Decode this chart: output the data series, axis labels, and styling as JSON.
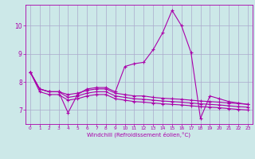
{
  "xlabel": "Windchill (Refroidissement éolien,°C)",
  "background_color": "#cce8e8",
  "line_color": "#aa00aa",
  "grid_color": "#aaaacc",
  "xmin": -0.5,
  "xmax": 23.5,
  "ymin": 6.5,
  "ymax": 10.75,
  "yticks": [
    7,
    8,
    9,
    10
  ],
  "xticks": [
    0,
    1,
    2,
    3,
    4,
    5,
    6,
    7,
    8,
    9,
    10,
    11,
    12,
    13,
    14,
    15,
    16,
    17,
    18,
    19,
    20,
    21,
    22,
    23
  ],
  "series1_x": [
    0,
    1,
    2,
    3,
    4,
    5,
    6,
    7,
    8,
    9,
    10,
    11,
    12,
    13,
    14,
    15,
    16,
    17,
    18,
    19,
    20,
    21,
    22,
    23
  ],
  "series1_y": [
    8.35,
    7.75,
    7.65,
    7.65,
    6.9,
    7.55,
    7.75,
    7.8,
    7.8,
    7.65,
    8.55,
    8.65,
    8.7,
    9.15,
    9.75,
    10.55,
    10.0,
    9.05,
    6.7,
    7.5,
    7.4,
    7.3,
    7.25,
    7.2
  ],
  "series2_x": [
    0,
    1,
    2,
    3,
    4,
    5,
    6,
    7,
    8,
    9,
    10,
    11,
    12,
    13,
    14,
    15,
    16,
    17,
    18,
    19,
    20,
    21,
    22,
    23
  ],
  "series2_y": [
    8.35,
    7.75,
    7.65,
    7.65,
    7.55,
    7.6,
    7.7,
    7.75,
    7.75,
    7.6,
    7.55,
    7.5,
    7.5,
    7.45,
    7.42,
    7.4,
    7.38,
    7.35,
    7.32,
    7.3,
    7.28,
    7.25,
    7.23,
    7.2
  ],
  "series3_x": [
    0,
    1,
    2,
    3,
    4,
    5,
    6,
    7,
    8,
    9,
    10,
    11,
    12,
    13,
    14,
    15,
    16,
    17,
    18,
    19,
    20,
    21,
    22,
    23
  ],
  "series3_y": [
    8.35,
    7.75,
    7.65,
    7.65,
    7.45,
    7.5,
    7.6,
    7.65,
    7.65,
    7.5,
    7.45,
    7.4,
    7.38,
    7.35,
    7.32,
    7.3,
    7.28,
    7.25,
    7.22,
    7.2,
    7.18,
    7.15,
    7.12,
    7.1
  ],
  "series4_x": [
    0,
    1,
    2,
    3,
    4,
    5,
    6,
    7,
    8,
    9,
    10,
    11,
    12,
    13,
    14,
    15,
    16,
    17,
    18,
    19,
    20,
    21,
    22,
    23
  ],
  "series4_y": [
    8.35,
    7.65,
    7.55,
    7.55,
    7.35,
    7.4,
    7.5,
    7.55,
    7.55,
    7.4,
    7.35,
    7.3,
    7.28,
    7.25,
    7.22,
    7.2,
    7.18,
    7.15,
    7.12,
    7.1,
    7.08,
    7.05,
    7.02,
    7.0
  ]
}
